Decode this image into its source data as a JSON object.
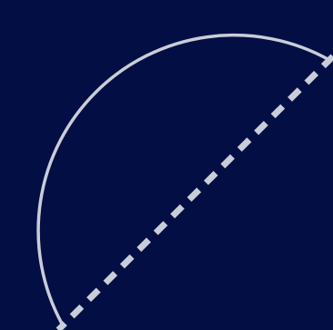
{
  "colors": {
    "background": "#020E44",
    "stroke": "#C9CDD8"
  },
  "shapes": {
    "arc": "semicircle-outline",
    "diameter_line": "dashed"
  }
}
